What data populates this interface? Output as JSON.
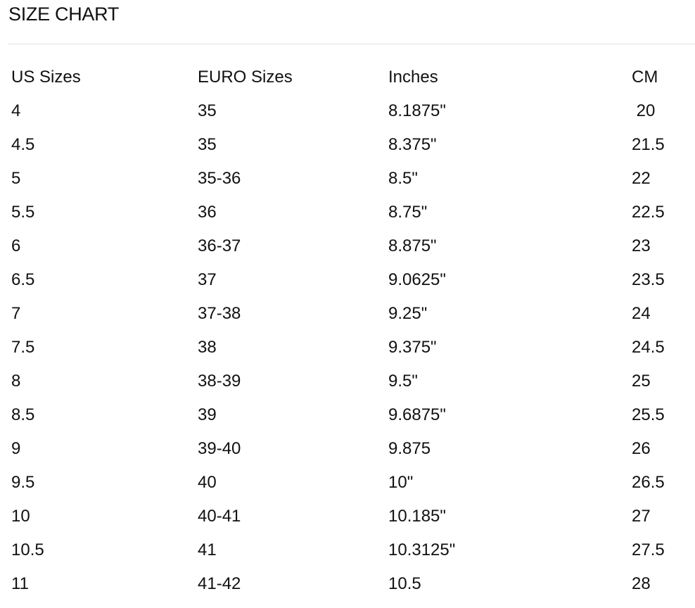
{
  "title": "SIZE CHART",
  "table": {
    "headers": [
      "US Sizes",
      "EURO Sizes",
      "Inches",
      "CM"
    ],
    "rows": [
      [
        "4",
        "35",
        "8.1875\"",
        " 20"
      ],
      [
        "4.5",
        "35",
        "8.375\"",
        "21.5"
      ],
      [
        "5",
        "35-36",
        "8.5\"",
        "22"
      ],
      [
        "5.5",
        "36",
        "8.75\"",
        "22.5"
      ],
      [
        "6",
        "36-37",
        "8.875\"",
        "23"
      ],
      [
        "6.5",
        "37",
        "9.0625\"",
        "23.5"
      ],
      [
        "7",
        "37-38",
        "9.25\"",
        "24"
      ],
      [
        "7.5",
        "38",
        "9.375\"",
        "24.5"
      ],
      [
        "8",
        "38-39",
        "9.5\"",
        "25"
      ],
      [
        "8.5",
        "39",
        "9.6875\"",
        "25.5"
      ],
      [
        "9",
        "39-40",
        "9.875",
        "26"
      ],
      [
        "9.5",
        "40",
        "10\"",
        "26.5"
      ],
      [
        "10",
        "40-41",
        "10.185\"",
        "27"
      ],
      [
        "10.5",
        "41",
        "10.3125\"",
        "27.5"
      ],
      [
        "11",
        "41-42",
        "10.5",
        "28"
      ]
    ]
  }
}
